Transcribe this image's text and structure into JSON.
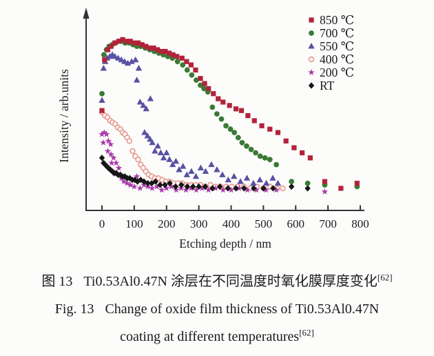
{
  "captions": {
    "zh": {
      "label": "图 13",
      "text": "Ti0.53Al0.47N 涂层在不同温度时氧化膜厚度变化",
      "superscript": "[62]"
    },
    "en": {
      "label": "Fig. 13",
      "line1": "Change of oxide film thickness of Ti0.53Al0.47N",
      "line2": "coating at different temperatures",
      "superscript": "[62]"
    }
  },
  "chart_data": {
    "type": "scatter",
    "title": "",
    "xlabel": "Etching depth / nm",
    "ylabel": "Intensity / arb.units",
    "xlim": [
      0,
      800
    ],
    "ylim": [
      0,
      100
    ],
    "x_ticks": [
      0,
      100,
      200,
      300,
      400,
      500,
      600,
      700,
      800
    ],
    "y_ticks": [],
    "grid": false,
    "legend_position": "top-right",
    "axis_color": "#333333",
    "text_color": "#1b1b1b",
    "series": [
      {
        "name": "850 ℃",
        "marker": "square",
        "color": "#b2233a",
        "points": [
          [
            0,
            55
          ],
          [
            8,
            85
          ],
          [
            18,
            91
          ],
          [
            28,
            93
          ],
          [
            40,
            95
          ],
          [
            52,
            96
          ],
          [
            64,
            97
          ],
          [
            76,
            96
          ],
          [
            88,
            96
          ],
          [
            100,
            95
          ],
          [
            112,
            95
          ],
          [
            124,
            94
          ],
          [
            136,
            93
          ],
          [
            148,
            92
          ],
          [
            160,
            92
          ],
          [
            172,
            91
          ],
          [
            184,
            90
          ],
          [
            196,
            90
          ],
          [
            208,
            89
          ],
          [
            220,
            88
          ],
          [
            232,
            87
          ],
          [
            248,
            86
          ],
          [
            262,
            84
          ],
          [
            276,
            82
          ],
          [
            290,
            79
          ],
          [
            305,
            74
          ],
          [
            318,
            71
          ],
          [
            330,
            68
          ],
          [
            345,
            65
          ],
          [
            360,
            62
          ],
          [
            375,
            60
          ],
          [
            395,
            58
          ],
          [
            415,
            56
          ],
          [
            432,
            55
          ],
          [
            452,
            52
          ],
          [
            472,
            49
          ],
          [
            495,
            46
          ],
          [
            520,
            44
          ],
          [
            545,
            42
          ],
          [
            570,
            37
          ],
          [
            595,
            33
          ],
          [
            620,
            30
          ],
          [
            645,
            27
          ],
          [
            690,
            13
          ],
          [
            740,
            9
          ],
          [
            790,
            12
          ]
        ]
      },
      {
        "name": "700 ℃",
        "marker": "circle",
        "color": "#3a7a35",
        "points": [
          [
            0,
            65
          ],
          [
            6,
            88
          ],
          [
            14,
            91
          ],
          [
            22,
            93
          ],
          [
            32,
            94
          ],
          [
            42,
            95
          ],
          [
            52,
            96
          ],
          [
            62,
            96
          ],
          [
            72,
            95
          ],
          [
            84,
            95
          ],
          [
            96,
            94
          ],
          [
            108,
            93
          ],
          [
            120,
            93
          ],
          [
            134,
            92
          ],
          [
            148,
            91
          ],
          [
            162,
            90
          ],
          [
            176,
            89
          ],
          [
            190,
            88
          ],
          [
            204,
            87
          ],
          [
            218,
            86
          ],
          [
            234,
            84
          ],
          [
            250,
            82
          ],
          [
            264,
            79
          ],
          [
            278,
            76
          ],
          [
            292,
            73
          ],
          [
            305,
            70
          ],
          [
            316,
            68
          ],
          [
            328,
            66
          ],
          [
            342,
            57
          ],
          [
            356,
            53
          ],
          [
            370,
            50
          ],
          [
            384,
            46
          ],
          [
            398,
            44
          ],
          [
            410,
            42
          ],
          [
            422,
            39
          ],
          [
            434,
            36
          ],
          [
            448,
            34
          ],
          [
            462,
            32
          ],
          [
            476,
            30
          ],
          [
            490,
            28
          ],
          [
            505,
            27
          ],
          [
            520,
            26
          ],
          [
            540,
            23
          ],
          [
            587,
            13
          ],
          [
            637,
            12
          ],
          [
            690,
            11
          ],
          [
            790,
            10
          ]
        ]
      },
      {
        "name": "550 ℃",
        "marker": "triangle",
        "color": "#5951a2",
        "points": [
          [
            0,
            61
          ],
          [
            5,
            80
          ],
          [
            10,
            84
          ],
          [
            16,
            86
          ],
          [
            24,
            87
          ],
          [
            32,
            88
          ],
          [
            40,
            87
          ],
          [
            50,
            86
          ],
          [
            60,
            85
          ],
          [
            70,
            84
          ],
          [
            80,
            83
          ],
          [
            92,
            84
          ],
          [
            104,
            85
          ],
          [
            114,
            80
          ],
          [
            108,
            73
          ],
          [
            118,
            60
          ],
          [
            128,
            58
          ],
          [
            137,
            56
          ],
          [
            132,
            42
          ],
          [
            141,
            40
          ],
          [
            149,
            38
          ],
          [
            156,
            36
          ],
          [
            150,
            62
          ],
          [
            164,
            31
          ],
          [
            173,
            34
          ],
          [
            182,
            30
          ],
          [
            191,
            27
          ],
          [
            200,
            30
          ],
          [
            209,
            26
          ],
          [
            219,
            23
          ],
          [
            229,
            25
          ],
          [
            239,
            20
          ],
          [
            251,
            22
          ],
          [
            263,
            17
          ],
          [
            277,
            19
          ],
          [
            291,
            16
          ],
          [
            306,
            21
          ],
          [
            321,
            19
          ],
          [
            339,
            23
          ],
          [
            356,
            20
          ],
          [
            373,
            17
          ],
          [
            391,
            14
          ],
          [
            409,
            16
          ],
          [
            429,
            13
          ],
          [
            449,
            15
          ],
          [
            469,
            12
          ],
          [
            489,
            14
          ],
          [
            509,
            12
          ],
          [
            529,
            15
          ],
          [
            545,
            12
          ]
        ]
      },
      {
        "name": "400 ℃",
        "marker": "circle-open",
        "color": "#e79b92",
        "points": [
          [
            0,
            54
          ],
          [
            9,
            52
          ],
          [
            17,
            51
          ],
          [
            25,
            49
          ],
          [
            33,
            48
          ],
          [
            41,
            47
          ],
          [
            49,
            45
          ],
          [
            57,
            44
          ],
          [
            64,
            42
          ],
          [
            71,
            41
          ],
          [
            78,
            39
          ],
          [
            85,
            37
          ],
          [
            95,
            31
          ],
          [
            103,
            28
          ],
          [
            112,
            26
          ],
          [
            120,
            23
          ],
          [
            128,
            21
          ],
          [
            136,
            19
          ],
          [
            145,
            17
          ],
          [
            154,
            16
          ],
          [
            164,
            15
          ],
          [
            175,
            15
          ],
          [
            186,
            14
          ],
          [
            198,
            13
          ],
          [
            210,
            13
          ],
          [
            222,
            12
          ],
          [
            235,
            12
          ],
          [
            248,
            12
          ],
          [
            262,
            11
          ],
          [
            276,
            11
          ],
          [
            290,
            11
          ],
          [
            305,
            11
          ],
          [
            320,
            10
          ],
          [
            336,
            11
          ],
          [
            352,
            10
          ],
          [
            368,
            10
          ],
          [
            385,
            10
          ],
          [
            402,
            10
          ],
          [
            420,
            10
          ],
          [
            440,
            10
          ],
          [
            460,
            9
          ],
          [
            480,
            10
          ],
          [
            500,
            9
          ],
          [
            520,
            10
          ],
          [
            542,
            9
          ],
          [
            560,
            9
          ]
        ]
      },
      {
        "name": "200 ℃",
        "marker": "star",
        "color": "#a83aaa",
        "points": [
          [
            0,
            41
          ],
          [
            7,
            42
          ],
          [
            14,
            41
          ],
          [
            4,
            36
          ],
          [
            20,
            37
          ],
          [
            27,
            35
          ],
          [
            18,
            31
          ],
          [
            28,
            29
          ],
          [
            36,
            27
          ],
          [
            30,
            24
          ],
          [
            44,
            24
          ],
          [
            38,
            18
          ],
          [
            52,
            21
          ],
          [
            60,
            15
          ],
          [
            68,
            13
          ],
          [
            78,
            12
          ],
          [
            88,
            11
          ],
          [
            100,
            10
          ],
          [
            108,
            16
          ],
          [
            118,
            9
          ],
          [
            130,
            11
          ],
          [
            142,
            10
          ],
          [
            155,
            9
          ],
          [
            170,
            10
          ],
          [
            185,
            8
          ],
          [
            200,
            9
          ],
          [
            215,
            10
          ],
          [
            230,
            8
          ],
          [
            245,
            9
          ],
          [
            260,
            8
          ],
          [
            276,
            9
          ],
          [
            292,
            8
          ],
          [
            310,
            9
          ],
          [
            330,
            8
          ],
          [
            352,
            9
          ],
          [
            375,
            8
          ],
          [
            400,
            8
          ],
          [
            425,
            9
          ],
          [
            450,
            8
          ],
          [
            478,
            8
          ],
          [
            508,
            8
          ],
          [
            540,
            8
          ],
          [
            690,
            7
          ]
        ]
      },
      {
        "name": "RT",
        "marker": "diamond",
        "color": "#161616",
        "points": [
          [
            0,
            27
          ],
          [
            5,
            24
          ],
          [
            10,
            23
          ],
          [
            15,
            22
          ],
          [
            20,
            21
          ],
          [
            26,
            20
          ],
          [
            32,
            19
          ],
          [
            38,
            18
          ],
          [
            44,
            18
          ],
          [
            50,
            17
          ],
          [
            57,
            17
          ],
          [
            64,
            16
          ],
          [
            71,
            16
          ],
          [
            78,
            15
          ],
          [
            86,
            15
          ],
          [
            94,
            14
          ],
          [
            102,
            14
          ],
          [
            110,
            13
          ],
          [
            120,
            14
          ],
          [
            130,
            13
          ],
          [
            142,
            12
          ],
          [
            154,
            12
          ],
          [
            166,
            13
          ],
          [
            180,
            11
          ],
          [
            195,
            11
          ],
          [
            210,
            12
          ],
          [
            228,
            10
          ],
          [
            246,
            11
          ],
          [
            264,
            10
          ],
          [
            282,
            10
          ],
          [
            300,
            10
          ],
          [
            320,
            10
          ],
          [
            342,
            9
          ],
          [
            365,
            10
          ],
          [
            390,
            9
          ],
          [
            415,
            9
          ],
          [
            440,
            9
          ],
          [
            470,
            9
          ],
          [
            500,
            9
          ],
          [
            530,
            9
          ],
          [
            587,
            10
          ],
          [
            637,
            9
          ]
        ]
      }
    ]
  }
}
